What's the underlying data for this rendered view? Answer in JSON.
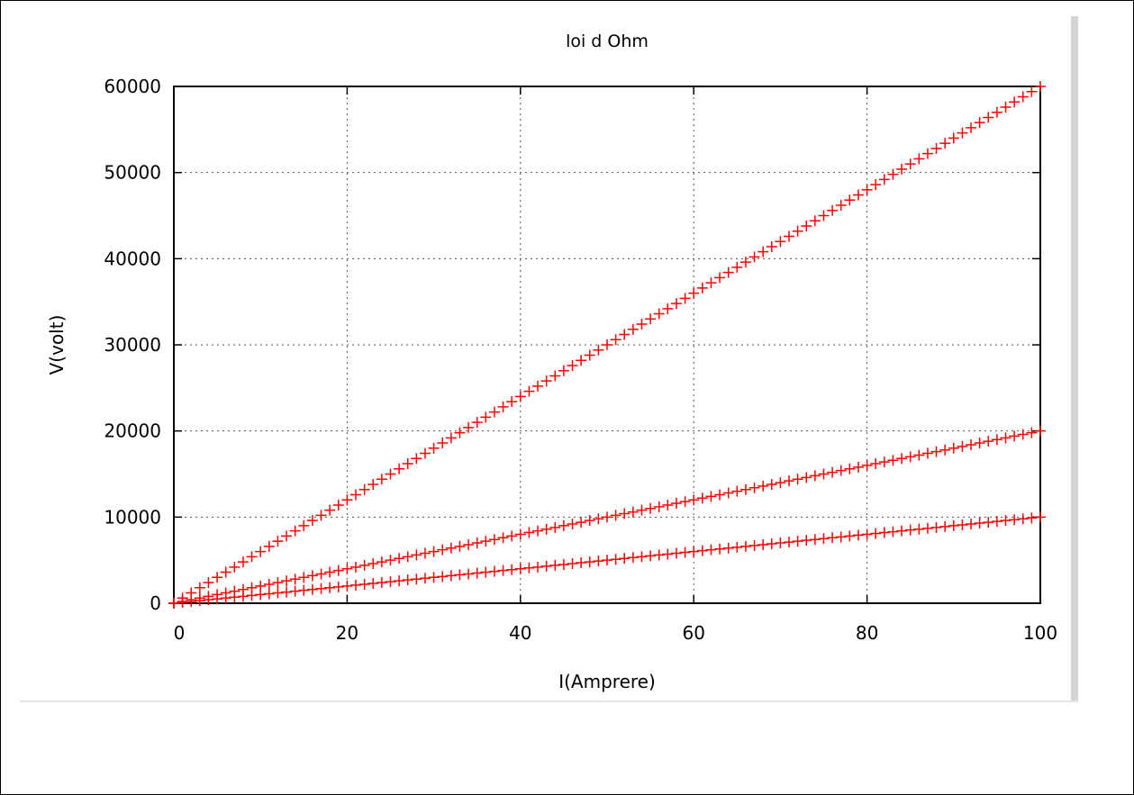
{
  "chart_data": {
    "type": "scatter",
    "title": "loi d Ohm",
    "xlabel": "I(Amprere)",
    "ylabel": "V(volt)",
    "xlim": [
      0,
      100
    ],
    "ylim": [
      0,
      60000
    ],
    "xticks": [
      "0",
      "20",
      "40",
      "60",
      "80",
      "100"
    ],
    "yticks": [
      "0",
      "10000",
      "20000",
      "30000",
      "40000",
      "50000",
      "60000"
    ],
    "grid": true,
    "marker": "+",
    "color": "#ff0000",
    "series": [
      {
        "slope": 600,
        "x_start": 0,
        "x_end": 100,
        "x_step": 1
      },
      {
        "slope": 200,
        "x_start": 0,
        "x_end": 100,
        "x_step": 1
      },
      {
        "slope": 100,
        "x_start": 0,
        "x_end": 100,
        "x_step": 1
      }
    ]
  }
}
